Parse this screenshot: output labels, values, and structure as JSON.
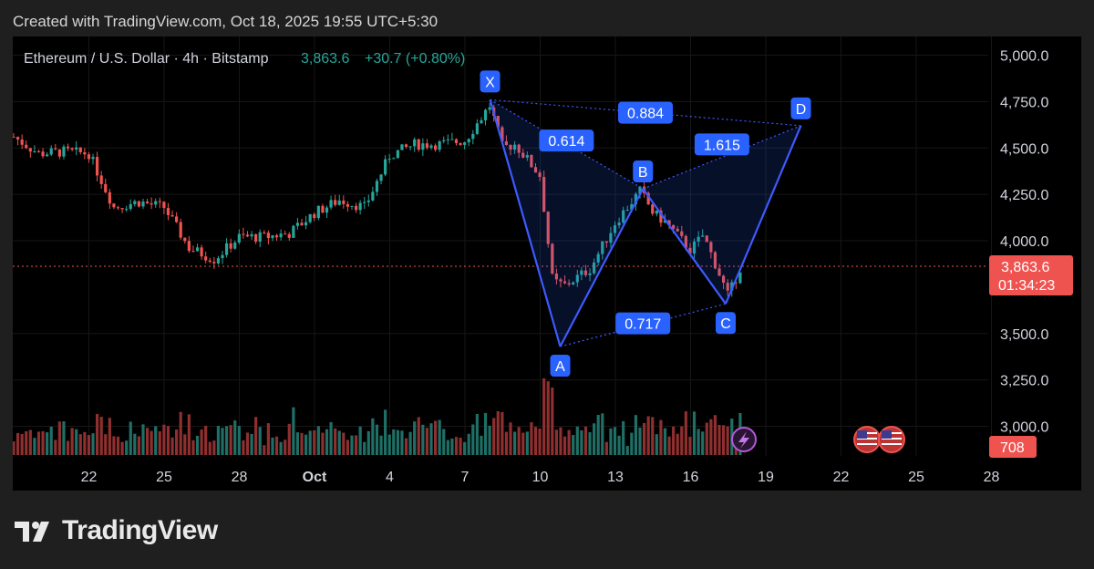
{
  "watermark": "Created with TradingView.com, Oct 18, 2025 19:55 UTC+5:30",
  "symbol": {
    "name": "Ethereum / U.S. Dollar · 4h · Bitstamp",
    "price": "3,863.6",
    "change": "+30.7 (+0.80%)"
  },
  "brand": "TradingView",
  "colors": {
    "up": "#26a69a",
    "down": "#ef5350",
    "pattern": "#3d5afe",
    "label_bg": "#2962ff",
    "change_text": "#26a69a"
  },
  "chart_data": {
    "type": "candlestick",
    "yaxis": {
      "ticks": [
        "5,000.0",
        "4,750.0",
        "4,500.0",
        "4,250.0",
        "4,000.0",
        "3,500.0",
        "3,250.0",
        "3,000.0"
      ],
      "ylim": [
        2850,
        5100
      ]
    },
    "xaxis": {
      "ticks": [
        "22",
        "25",
        "28",
        "Oct",
        "4",
        "7",
        "10",
        "13",
        "16",
        "19",
        "22",
        "25",
        "28"
      ]
    },
    "last_price": {
      "label": "3,863.6",
      "countdown": "01:34:23"
    },
    "volume_label": "708",
    "price_path": [
      [
        "Sep 19",
        4560
      ],
      [
        "Sep 20",
        4470
      ],
      [
        "Sep 21",
        4480
      ],
      [
        "Sep 22",
        4470
      ],
      [
        "Sep 23",
        4180
      ],
      [
        "Sep 24",
        4210
      ],
      [
        "Sep 25",
        4180
      ],
      [
        "Sep 26",
        3960
      ],
      [
        "Sep 27",
        3900
      ],
      [
        "Sep 28",
        4020
      ],
      [
        "Sep 29",
        4020
      ],
      [
        "Sep 30",
        4040
      ],
      [
        "Oct 1",
        4150
      ],
      [
        "Oct 2",
        4220
      ],
      [
        "Oct 3",
        4180
      ],
      [
        "Oct 4",
        4460
      ],
      [
        "Oct 5",
        4520
      ],
      [
        "Oct 6",
        4520
      ],
      [
        "Oct 7",
        4540
      ],
      [
        "Oct 8",
        4730
      ],
      [
        "Oct 8.5",
        4500
      ],
      [
        "Oct 9",
        4520
      ],
      [
        "Oct 10",
        4350
      ],
      [
        "Oct 10.5",
        3780
      ],
      [
        "Oct 11",
        3760
      ],
      [
        "Oct 12",
        3850
      ],
      [
        "Oct 13",
        4100
      ],
      [
        "Oct 14",
        4270
      ],
      [
        "Oct 14.5",
        4150
      ],
      [
        "Oct 15",
        4100
      ],
      [
        "Oct 16",
        3950
      ],
      [
        "Oct 16.5",
        4030
      ],
      [
        "Oct 17",
        3870
      ],
      [
        "Oct 17.5",
        3700
      ],
      [
        "Oct 18",
        3860
      ]
    ],
    "harmonic_pattern": {
      "points": [
        {
          "name": "X",
          "date": "Oct 8",
          "price": 4760
        },
        {
          "name": "A",
          "date": "Oct 10.8",
          "price": 3430
        },
        {
          "name": "B",
          "date": "Oct 14.1",
          "price": 4280
        },
        {
          "name": "C",
          "date": "Oct 17.4",
          "price": 3660
        },
        {
          "name": "D",
          "date": "Oct 20.4",
          "price": 4620
        }
      ],
      "ratios": [
        "0.614",
        "0.884",
        "1.615",
        "0.717"
      ]
    }
  }
}
